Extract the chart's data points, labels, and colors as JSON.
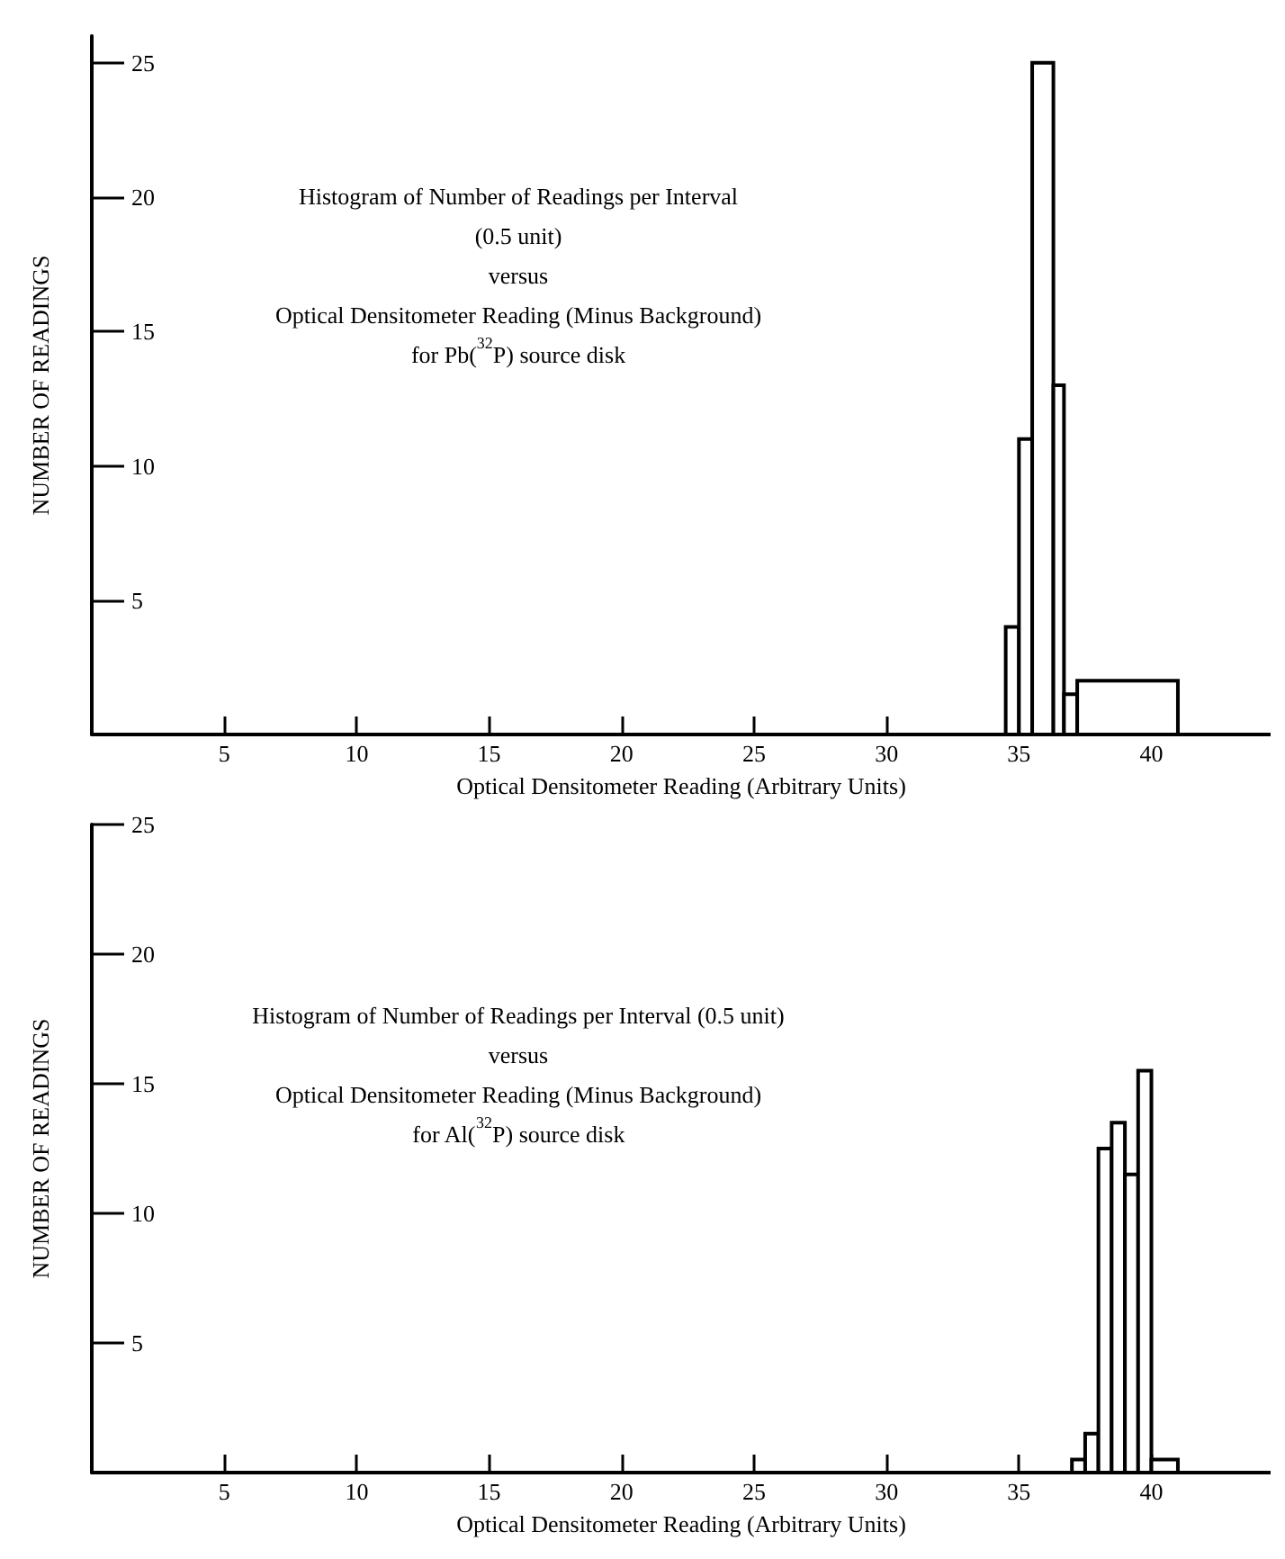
{
  "chart_data": [
    {
      "type": "histogram",
      "title": "Histogram of Number of Readings per Interval\n(0.5 unit)\nversus\nOptical Densitometer Reading (Minus Background)\nfor Pb($^{32}$P) source disk",
      "xlabel": "Optical Densitometer Reading (Arbitrary Units)",
      "ylabel": "NUMBER OF READINGS",
      "bins": [
        34.5,
        35,
        35.5,
        36.3,
        36.7,
        37.2,
        41
      ],
      "values": [
        4,
        11,
        25,
        13,
        1.5,
        2
      ],
      "color": "#000000",
      "xlim": [
        0,
        44.5
      ],
      "ylim": [
        0,
        26
      ],
      "xticks": [
        5,
        10,
        15,
        20,
        25,
        30,
        35,
        40
      ],
      "yticks": [
        5,
        10,
        15,
        20,
        25
      ]
    },
    {
      "type": "histogram",
      "title": "Histogram of Number of Readings per Interval (0.5 unit)\nversus\nOptical Densitometer Reading (Minus Background)\nfor Al($^{32}$P) source disk",
      "xlabel": "Optical Densitometer Reading (Arbitrary Units)",
      "ylabel": "NUMBER OF READINGS",
      "bins": [
        37,
        37.5,
        38,
        38.5,
        39,
        39.5,
        40,
        41
      ],
      "values": [
        0.5,
        1.5,
        12.5,
        13.5,
        11.5,
        15.5,
        0.5
      ],
      "color": "#000000",
      "xlim": [
        0,
        44.5
      ],
      "ylim": [
        0,
        25
      ],
      "xticks": [
        5,
        10,
        15,
        20,
        25,
        30,
        35,
        40
      ],
      "yticks": [
        5,
        10,
        15,
        20,
        25
      ]
    }
  ]
}
